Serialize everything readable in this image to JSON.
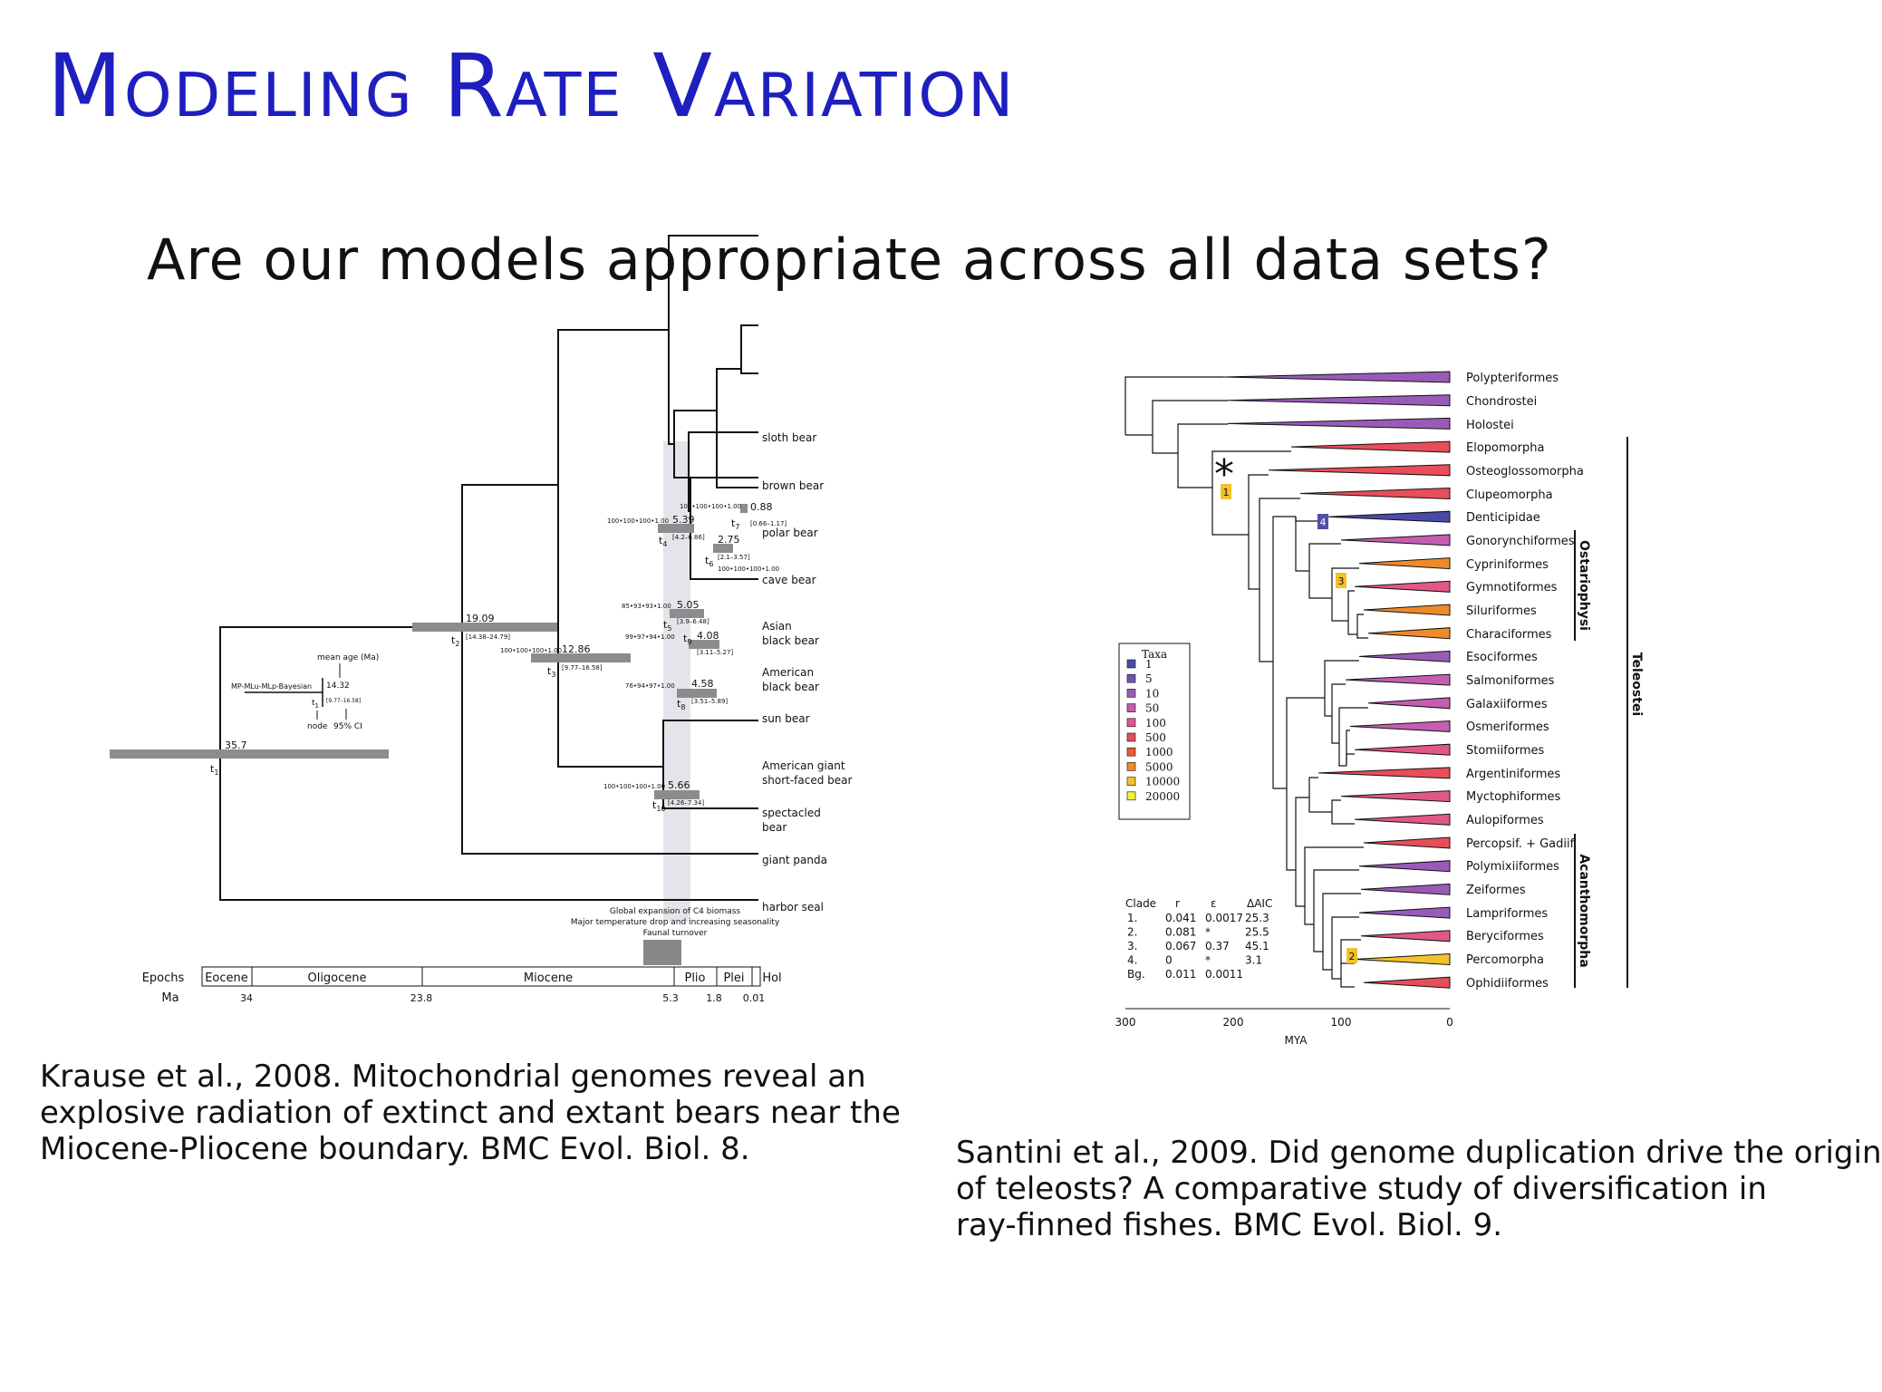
{
  "slide": {
    "title": "Modeling Rate Variation",
    "subtitle": "Are our models appropriate across all data sets?"
  },
  "bears": {
    "taxa": [
      "sloth bear",
      "brown bear",
      "polar bear",
      "cave bear",
      "Asian",
      "black bear",
      "American",
      "black bear",
      "sun bear",
      "American giant",
      "short-faced bear",
      "spectacled",
      "bear",
      "giant panda",
      "harbor seal"
    ],
    "nodes": [
      {
        "t": "t",
        "sub": "1",
        "age": "35.7",
        "ci": "",
        "support": ""
      },
      {
        "t": "t",
        "sub": "2",
        "age": "19.09",
        "ci": "[14.38–24.79]",
        "support": ""
      },
      {
        "t": "t",
        "sub": "3",
        "age": "12.86",
        "ci": "[9.77–16.58]",
        "support": "100•100•100•1.00"
      },
      {
        "t": "t",
        "sub": "4",
        "age": "5.39",
        "ci": "[4.2–6.86]",
        "support": "100•100•100•1.00"
      },
      {
        "t": "t",
        "sub": "5",
        "age": "5.05",
        "ci": "[3.9–6.48]",
        "support": "85•93•93•1.00"
      },
      {
        "t": "t",
        "sub": "6",
        "age": "2.75",
        "ci": "[2.1–3.57]",
        "support": "100•100•100•1.00"
      },
      {
        "t": "t",
        "sub": "7",
        "age": "0.88",
        "ci": "[0.66–1.17]",
        "support": "100•100•100•1.00"
      },
      {
        "t": "t",
        "sub": "8",
        "age": "4.58",
        "ci": "[3.51–5.89]",
        "support": "76•94•97•1.00"
      },
      {
        "t": "t",
        "sub": "9",
        "age": "4.08",
        "ci": "[3.11–5.27]",
        "support": "99•97•94•1.00"
      },
      {
        "t": "t",
        "sub": "10",
        "age": "5.66",
        "ci": "[4.26–7.34]",
        "support": "100•100•100•1.00"
      }
    ],
    "legend": {
      "mean_age": "mean age (Ma)",
      "method": "MP-MLu-MLp-Bayesian",
      "age": "14.32",
      "ci": "[9.77–16.58]",
      "node_t": "t",
      "node_sub": "1",
      "node": "node",
      "ci95": "95% CI"
    },
    "events": [
      "Global expansion of C4 biomass",
      "Major temperature drop and increasing seasonality",
      "Faunal turnover"
    ],
    "epochs_label": "Epochs",
    "ma_label": "Ma",
    "epochs": [
      "Eocene",
      "Oligocene",
      "Miocene",
      "Plio",
      "Plei",
      "Hol"
    ],
    "ma_ticks": [
      "34",
      "23.8",
      "5.3",
      "1.8",
      "0.01"
    ]
  },
  "fishes": {
    "taxa": [
      "Polypteriformes",
      "Chondrostei",
      "Holostei",
      "Elopomorpha",
      "Osteoglossomorpha",
      "Clupeomorpha",
      "Denticipidae",
      "Gonorynchiformes",
      "Cypriniformes",
      "Gymnotiformes",
      "Siluriformes",
      "Characiformes",
      "Esociformes",
      "Salmoniformes",
      "Galaxiiformes",
      "Osmeriformes",
      "Stomiiformes",
      "Argentiniformes",
      "Myctophiformes",
      "Aulopiformes",
      "Percopsif. + Gadiif.",
      "Polymixiiformes",
      "Zeiformes",
      "Lampriformes",
      "Beryciformes",
      "Percomorpha",
      "Ophidiiformes"
    ],
    "groups": [
      "Teleostei",
      "Ostariophysi",
      "Acanthomorpha"
    ],
    "asterisk": "*",
    "shift_markers": [
      "1",
      "4",
      "3",
      "2"
    ],
    "taxa_legend_title": "Taxa",
    "taxa_legend": [
      {
        "label": "1",
        "color": "#4a4aa8"
      },
      {
        "label": "5",
        "color": "#6f55b0"
      },
      {
        "label": "10",
        "color": "#9a5bb8"
      },
      {
        "label": "50",
        "color": "#c45eb0"
      },
      {
        "label": "100",
        "color": "#e0588a"
      },
      {
        "label": "500",
        "color": "#e84e5a"
      },
      {
        "label": "1000",
        "color": "#ea5a36"
      },
      {
        "label": "5000",
        "color": "#ef8a2a"
      },
      {
        "label": "10000",
        "color": "#f2c22a"
      },
      {
        "label": "20000",
        "color": "#f6ee3a"
      }
    ],
    "clade_table": {
      "headers": [
        "Clade",
        "r",
        "ε",
        "ΔAIC"
      ],
      "rows": [
        [
          "1.",
          "0.041",
          "0.0017",
          "25.3"
        ],
        [
          "2.",
          "0.081",
          "*",
          "25.5"
        ],
        [
          "3.",
          "0.067",
          "0.37",
          "45.1"
        ],
        [
          "4.",
          "0",
          "*",
          "3.1"
        ],
        [
          "Bg.",
          "0.011",
          "0.0011",
          ""
        ]
      ]
    },
    "axis_ticks": [
      "300",
      "200",
      "100",
      "0"
    ],
    "axis_label": "MYA"
  },
  "captions": {
    "left": [
      "Krause et al., 2008.  Mitochondrial genomes reveal an",
      "explosive radiation of extinct and extant bears near the",
      "Miocene-Pliocene boundary.  BMC Evol.  Biol.  8."
    ],
    "right": [
      "Santini et al., 2009.  Did genome duplication drive the origin",
      "of teleosts?  A comparative study of diversification in",
      "ray-finned fishes.  BMC Evol.  Biol.  9."
    ]
  }
}
